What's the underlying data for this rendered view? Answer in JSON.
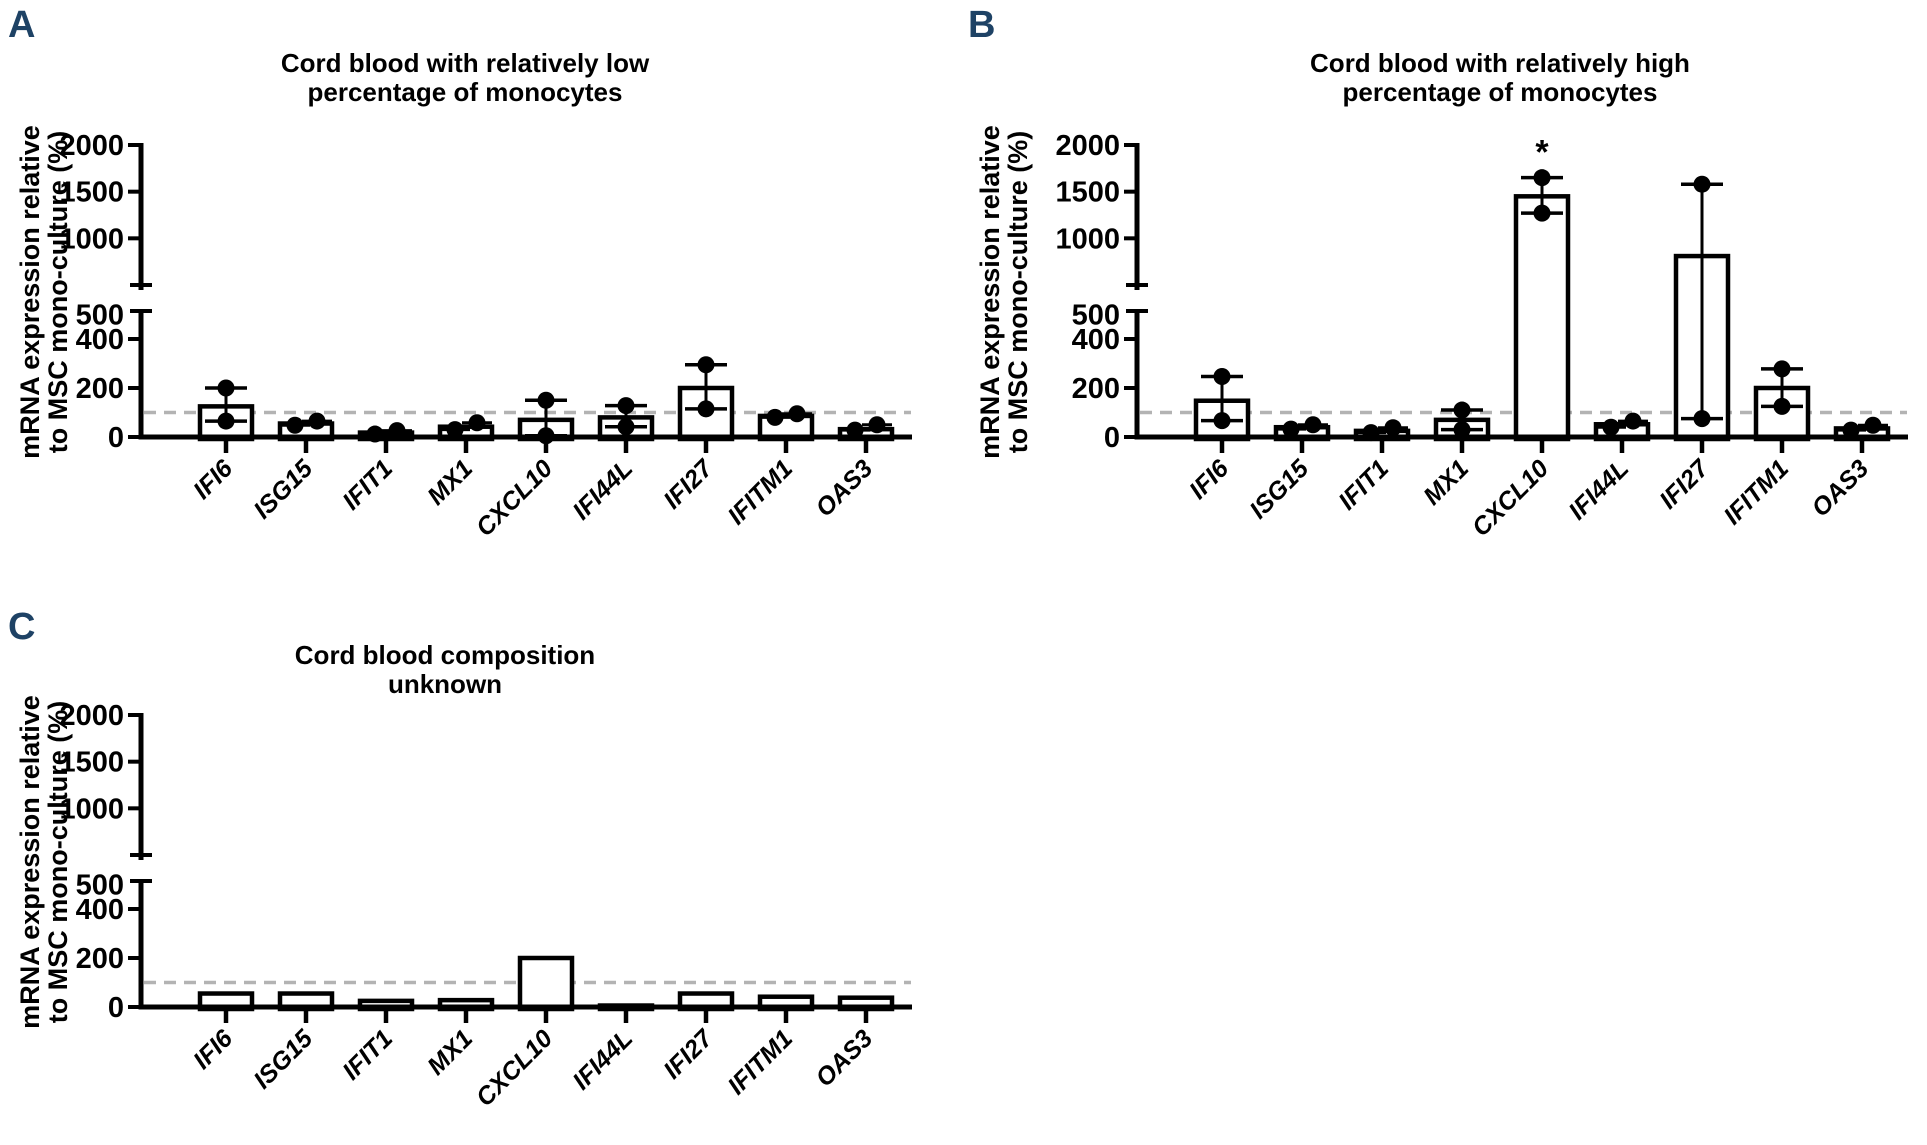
{
  "colors": {
    "panel_letter": "#1e4265",
    "ink": "#000000",
    "bar_fill": "#ffffff",
    "reference_line": "#b3b3b3"
  },
  "y_axis": {
    "label_lines": [
      "mRNA expression relative",
      "to MSC mono-culture (%)"
    ],
    "upper_ticks": [
      500,
      1000,
      1500,
      2000
    ],
    "lower_ticks": [
      0,
      200,
      400
    ],
    "broken_axis": true,
    "lower_range": [
      0,
      500
    ],
    "upper_range": [
      500,
      2000
    ]
  },
  "reference_line_value": 100,
  "chart_data": [
    {
      "panel": "A",
      "type": "bar",
      "title_lines": [
        "Cord blood with relatively low",
        "percentage of monocytes"
      ],
      "categories": [
        "IFI6",
        "ISG15",
        "IFIT1",
        "MX1",
        "CXCL10",
        "IFI44L",
        "IFI27",
        "IFITM1",
        "OAS3"
      ],
      "values": [
        125,
        55,
        18,
        42,
        70,
        80,
        200,
        86,
        32
      ],
      "points": [
        [
          65,
          200
        ],
        [
          48,
          65
        ],
        [
          12,
          26
        ],
        [
          30,
          58
        ],
        [
          5,
          150
        ],
        [
          42,
          128
        ],
        [
          115,
          295
        ],
        [
          80,
          95
        ],
        [
          28,
          50
        ]
      ],
      "significance": null
    },
    {
      "panel": "B",
      "type": "bar",
      "title_lines": [
        "Cord blood with relatively high",
        "percentage of monocytes"
      ],
      "categories": [
        "IFI6",
        "ISG15",
        "IFIT1",
        "MX1",
        "CXCL10",
        "IFI44L",
        "IFI27",
        "IFITM1",
        "OAS3"
      ],
      "values": [
        148,
        40,
        25,
        70,
        1450,
        52,
        810,
        200,
        35
      ],
      "points": [
        [
          67,
          247
        ],
        [
          32,
          50
        ],
        [
          18,
          38
        ],
        [
          30,
          110
        ],
        [
          1270,
          1650
        ],
        [
          40,
          65
        ],
        [
          75,
          1580
        ],
        [
          125,
          278
        ],
        [
          28,
          48
        ]
      ],
      "significance": {
        "category": "CXCL10",
        "label": "*"
      }
    },
    {
      "panel": "C",
      "type": "bar",
      "title_lines": [
        "Cord blood composition",
        "unknown"
      ],
      "categories": [
        "IFI6",
        "ISG15",
        "IFIT1",
        "MX1",
        "CXCL10",
        "IFI44L",
        "IFI27",
        "IFITM1",
        "OAS3"
      ],
      "values": [
        55,
        55,
        25,
        28,
        200,
        6,
        55,
        42,
        38
      ],
      "points": null,
      "significance": null
    }
  ]
}
